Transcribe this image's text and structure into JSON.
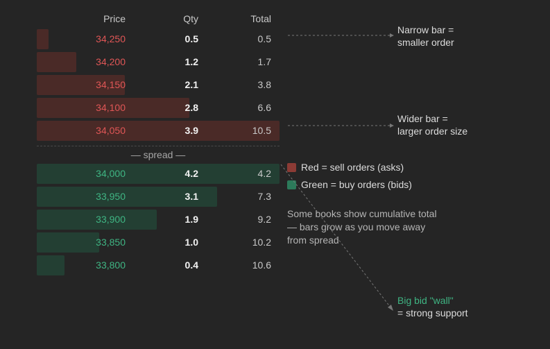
{
  "headers": {
    "price": "Price",
    "qty": "Qty",
    "total": "Total"
  },
  "asks": [
    {
      "price": "34,250",
      "qty": "0.5",
      "total": "0.5",
      "depth": 0.5
    },
    {
      "price": "34,200",
      "qty": "1.2",
      "total": "1.7",
      "depth": 1.7
    },
    {
      "price": "34,150",
      "qty": "2.1",
      "total": "3.8",
      "depth": 3.8
    },
    {
      "price": "34,100",
      "qty": "2.8",
      "total": "6.6",
      "depth": 6.6
    },
    {
      "price": "34,050",
      "qty": "3.9",
      "total": "10.5",
      "depth": 10.5
    }
  ],
  "bids": [
    {
      "price": "34,000",
      "qty": "4.2",
      "total": "4.2",
      "depth": 10.5
    },
    {
      "price": "33,950",
      "qty": "3.1",
      "total": "7.3",
      "depth": 7.8
    },
    {
      "price": "33,900",
      "qty": "1.9",
      "total": "9.2",
      "depth": 5.2
    },
    {
      "price": "33,850",
      "qty": "1.0",
      "total": "10.2",
      "depth": 2.7
    },
    {
      "price": "33,800",
      "qty": "0.4",
      "total": "10.6",
      "depth": 1.2
    }
  ],
  "max_depth": 10.5,
  "spread_label": "— spread —",
  "callouts": {
    "narrow_line1": "Narrow bar =",
    "narrow_line2": "smaller order",
    "wide_line1": "Wider bar =",
    "wide_line2": "larger order size",
    "wall_line1": "Big bid \"wall\"",
    "wall_line2": "= strong support"
  },
  "legend": {
    "sell": "Red = sell orders (asks)",
    "buy": "Green = buy orders (bids)"
  },
  "note": "Some books show cumulative total — bars grow as you move away from spread",
  "colors": {
    "background": "#252525",
    "ask_bar": "#4a2a27",
    "bid_bar": "#233f33",
    "ask_text": "#e05656",
    "bid_text": "#3fb583",
    "sell_swatch": "#8c3b35",
    "buy_swatch": "#2c7a5a",
    "leader": "#777777"
  }
}
